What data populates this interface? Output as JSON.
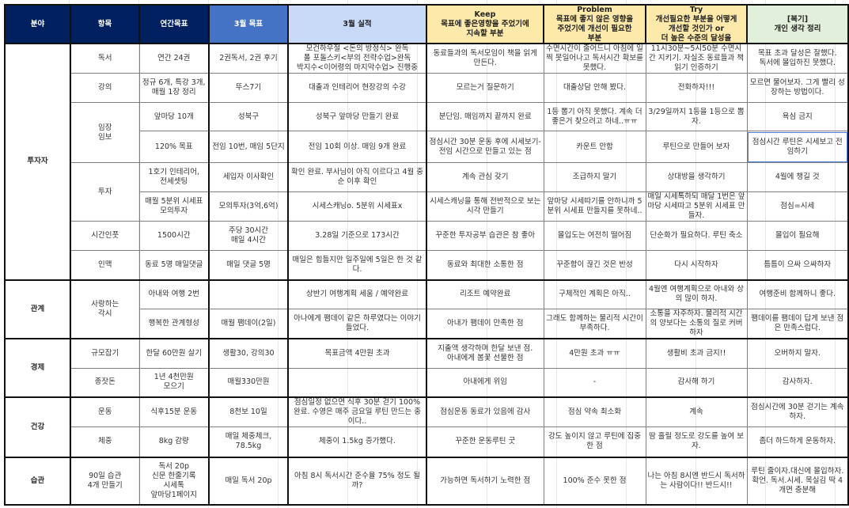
{
  "headers": [
    "분야",
    "항목",
    "연간목표",
    "3월 목표",
    "3월 실적",
    "Keep\n목표에 좋은영향을 주었기에\n지속할 부분",
    "Problem\n목표에 좋지 않은 영향을\n주었기에 개선이 필요한\n부분",
    "Try\n개선필요한 부분을 어떻게\n개선할 것인가 or\n더 높은 수준의 달성을",
    "[복기]\n개인 생각 정리"
  ],
  "header_colors": {
    "dark_navy": "#002060",
    "blue": "#4472c4",
    "light_blue": "#c9daf8",
    "yellow": "#fde9a9",
    "green": "#e2efda"
  },
  "groups": [
    {
      "area": "투자자",
      "items": [
        {
          "name": "독서",
          "rows": [
            [
              "연간 24권",
              "2권독서, 2권 후기",
              "모건하우절 <돈의 방정식> 완독\n폴 포돌스키<부의 전략수업>완독\n박지수<이어령의 마지막수업> 진행중",
              "동료들과의 독서모임이 책을 읽게 만든다.",
              "수면시간이 줄어드니 아침에 일찍 못일어나고 독서시간 확보를 못했다.",
              "11시30분~5시50분 수면시간 지키기. 자실조 동료들과 책읽기 인증하기",
              "목표 초과 달성은 잘했다.\n독서에 몰입하진 못했다."
            ]
          ]
        },
        {
          "name": "강의",
          "rows": [
            [
              "정규 6개, 특강 3개,\n매월 1장 정리",
              "뚜스7기",
              "대출과 인테리어 현장강의 수강",
              "모르는거 질문하기",
              "대출상담 안해 봤다.",
              "전화하자!!!",
              "모르면 물어보자. 그게 빨리 성장하는 방법이다."
            ]
          ]
        },
        {
          "name": "임장\n임보",
          "rows": [
            [
              "앞마당 10개",
              "성북구",
              "성북구 앞마당 만들기 완료",
              "분단임. 매임까지 끝까지 완료",
              "1등 뽑기 아직 못했다. 계속 더 좋은거 찾으려고 하네..ㅠㅠ",
              "3/29일까지 1등을 1등으로 뽑자.",
              "욕심 금지"
            ],
            [
              "120% 목표",
              "전임 10번, 매임 5단지",
              "전임 10회 이상.  매임 9개 완료",
              "점심시간 30분 운동 후에 시세보기-전임 시간으로 만들고 있는 점",
              "카운트 안함",
              "루틴으로 만들어 보자",
              "점심시간 루틴은 시세보고 전임하기"
            ]
          ]
        },
        {
          "name": "투자",
          "rows": [
            [
              "1호기 인테리어,\n전세셋팅",
              "세입자 이사확인",
              "확인 완료. 부사님이 아직 이르다고 4월 중순 이후 확인",
              "계속 관심 갖기",
              "조급하지 말기",
              "상대방을 생각하기",
              "4월에 챙길 것"
            ],
            [
              "매월 5분위 시세표\n모의투자",
              "모의투자(3억,6억)",
              "시세스캐닝o. 5분위 시세표x",
              "시세스캐닝을 통해 전반적으로 보는 시각 만들기",
              "앞마당 시세따기를 안하니까 5분위 시세표 만들지를 못하네..",
              "매일 시세톡하되 매달 1번은 앞마당 시세따고 5분위 시세표 만들자.",
              "점심=시세"
            ]
          ]
        },
        {
          "name": "시간인풋",
          "rows": [
            [
              "1500시간",
              "주당 30시간\n매일 4시간",
              "3.28일 기준으로 173시간",
              "꾸준한 투자공부 습관은 참 좋아",
              "몰입도는 여전히 떨어짐",
              "단순화가 필요하다. 루틴 축소",
              "몰입이 필요해"
            ]
          ]
        },
        {
          "name": "인맥",
          "rows": [
            [
              "동료 5명 매일댓글",
              "매일 댓글 5명",
              "매일은 힘들지만 일주일에 5일은 한 것 같다.",
              "동료와 최대한 소통한 점",
              "꾸준함이 끊긴 것은 반성",
              "다시 시작하자",
              "틈틈이 으싸 으싸하자"
            ]
          ]
        }
      ]
    },
    {
      "area": "관계",
      "items": [
        {
          "name": "사랑하는\n각시",
          "rows": [
            [
              "아내와 여행 2번",
              "",
              "상반기 여행계획 세움 / 예약완료",
              "리조트 예약완료",
              "구체적인 계획은 아직..",
              "4월엔 여행계획으로 아내와 상의 많이 하자.",
              "여행준비 함께하니 좋다."
            ],
            [
              "행복한 관계형성",
              "매월 팸데이(2일)",
              "아나에게 팸데이 같은 하루였다는 이야기 들었다.",
              "아내가 팸데이 만족한 점",
              "그래도 함께하는 물리적 시간이 부족하다.",
              "소통을 자주하자. 물리적 시간의 양보다는 소통의 질로 커버하자",
              "팸데이를 팸데이 답게 보낸 점은 만족스럽다."
            ]
          ]
        }
      ]
    },
    {
      "area": "경제",
      "items": [
        {
          "name": "규모잡기",
          "rows": [
            [
              "한달 60만원 살기",
              "생활30, 강의30",
              "목표금액 4만원 초과",
              "지출액 생각하며 한달 보낸 점.\n아내에게 봄꽃 선물한 점",
              "4만원 초과 ㅠㅠ",
              "생활비 초과 금지!!",
              "오버하지 말자."
            ]
          ]
        },
        {
          "name": "종잣돈",
          "rows": [
            [
              "1년 4천만원\n모으기",
              "매월330만원",
              "",
              "아내에게 위임",
              "-",
              "감사해 하기",
              "감사하자."
            ]
          ]
        }
      ]
    },
    {
      "area": "건강",
      "items": [
        {
          "name": "운동",
          "rows": [
            [
              "식후15분 운동",
              "8천보 10일",
              "점심일정 없으면 식후 30분 걷기 100% 완료. 수영은  매주 금요일 루틴 만드는 중이다..",
              "점심운동 동료가 있음에 감사",
              "점심 약속 최소화",
              "계속",
              "점심시간에 30분 걷기는 계속하자."
            ]
          ]
        },
        {
          "name": "체중",
          "rows": [
            [
              "8kg 감량",
              "매일 체중체크, 78.5kg",
              "체중이 1.5kg 증가했다.",
              "꾸준한 운동루틴 굿",
              "강도 높이지 않고 루틴에 집중한 점",
              "땀 흘릴 정도로 강도를 높여 보자.",
              "좀더 하드하게 운동하자."
            ]
          ]
        }
      ]
    },
    {
      "area": "습관",
      "items": [
        {
          "name": "90일 습관\n4개 만들기",
          "rows": [
            [
              "독서 20p\n신문 한줄기록\n시세톡\n앞마당1페이지",
              "매일 독서 20p",
              "아침 8시 독서시간 준수율 75% 정도 될까?",
              "가능하면 독서하기 노력한 점",
              "100% 준수 못한 점",
              "나는 아침 8시엔 반드시 독서하는 사람이다!! 반드시!!",
              "루틴 줄이자.대신에 몰입하자. 확언. 독서.시세. 목실김 딱 4개면 충분해"
            ]
          ]
        }
      ]
    }
  ]
}
